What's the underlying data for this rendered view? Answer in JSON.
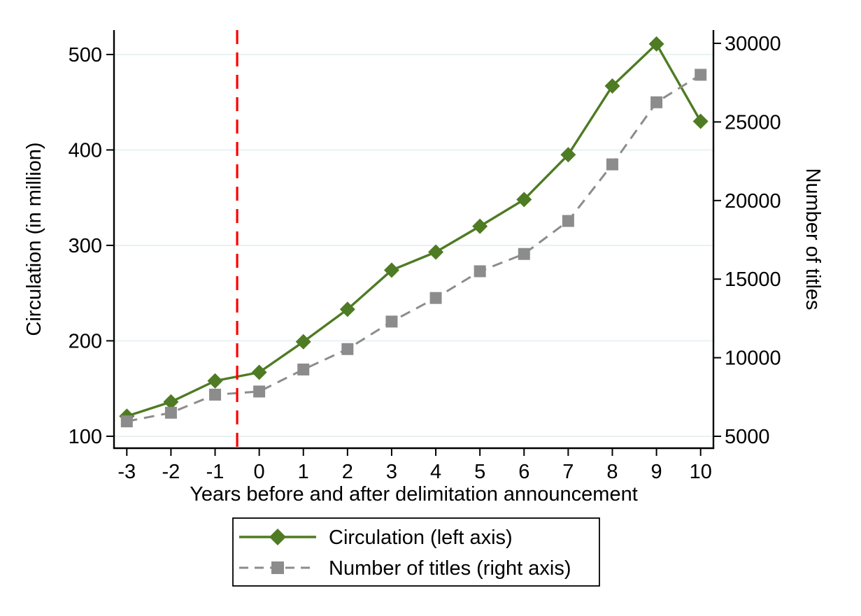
{
  "chart_data": {
    "type": "line",
    "title": "",
    "xlabel": "Years before and after delimitation announcement",
    "ylabel_left": "Circulation (in million)",
    "ylabel_right": "Number of titles",
    "x": [
      -3,
      -2,
      -1,
      0,
      1,
      2,
      3,
      4,
      5,
      6,
      7,
      8,
      9,
      10
    ],
    "series": [
      {
        "name": "Circulation (left axis)",
        "axis": "left",
        "marker": "diamond",
        "line_style": "solid",
        "color": "#4e7b23",
        "values": [
          121,
          136,
          158,
          167,
          199,
          233,
          274,
          293,
          320,
          348,
          395,
          467,
          511,
          430
        ]
      },
      {
        "name": "Number of titles (right axis)",
        "axis": "right",
        "marker": "square",
        "line_style": "dashed",
        "color": "#8c8c8c",
        "values": [
          5950,
          6500,
          7650,
          7850,
          9250,
          10550,
          12300,
          13800,
          15500,
          16600,
          18700,
          22300,
          26250,
          28000
        ]
      }
    ],
    "x_ticks": [
      -3,
      -2,
      -1,
      0,
      1,
      2,
      3,
      4,
      5,
      6,
      7,
      8,
      9,
      10
    ],
    "left_ticks": [
      100,
      200,
      300,
      400,
      500
    ],
    "right_ticks": [
      5000,
      10000,
      15000,
      20000,
      25000,
      30000
    ],
    "xlim": [
      -3.29,
      10.29
    ],
    "ylim_left": [
      87.5,
      525.6
    ],
    "ylim_right": [
      4244,
      30845
    ],
    "reference_line": {
      "x": -0.5,
      "color": "#fe0000",
      "style": "dashed"
    },
    "grid": "horizontal",
    "gridline_color": "#e2eff1",
    "legend": {
      "position": "bottom-center",
      "border": true,
      "entries": [
        "Circulation (left axis)",
        "Number of titles (right axis)"
      ]
    }
  }
}
